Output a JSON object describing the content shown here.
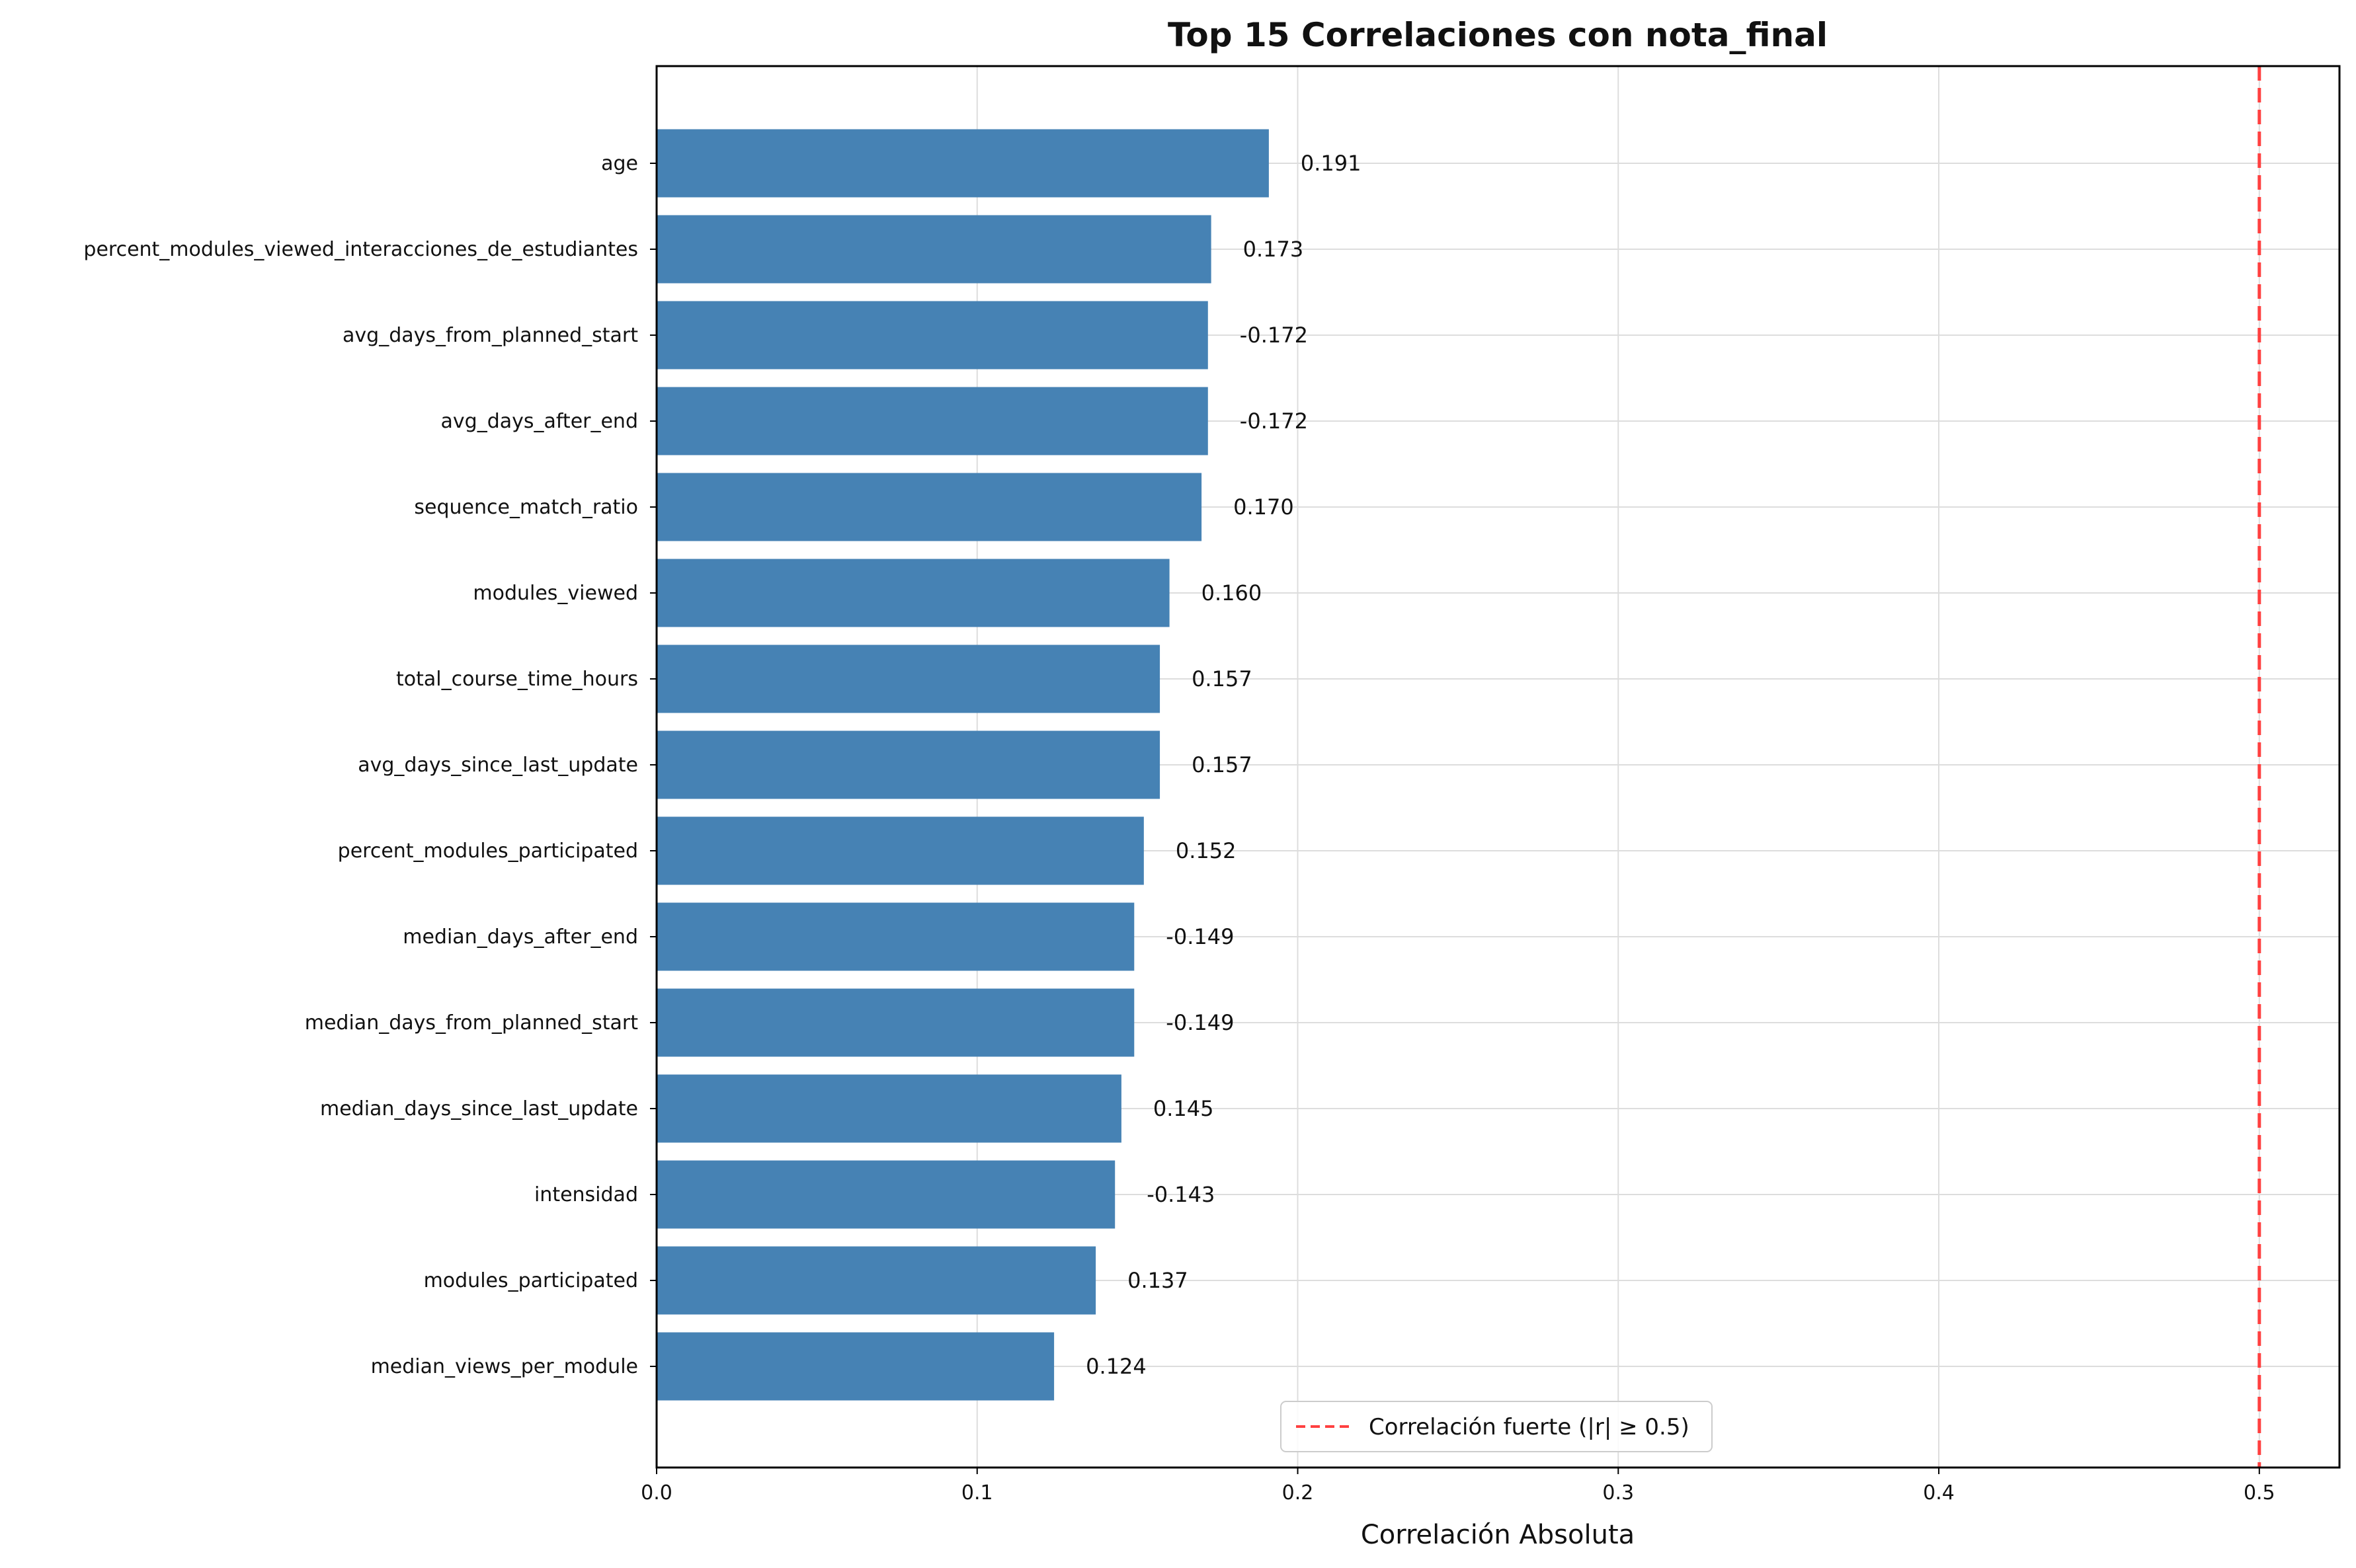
{
  "chart_data": {
    "type": "bar",
    "orientation": "horizontal",
    "title": "Top 15 Correlaciones con nota_final",
    "xlabel": "Correlación Absoluta",
    "ylabel": "",
    "xlim": [
      0,
      0.525
    ],
    "xticks": [
      "0.0",
      "0.1",
      "0.2",
      "0.3",
      "0.4",
      "0.5"
    ],
    "grid": true,
    "bar_color": "#4682b4",
    "categories": [
      "age",
      "percent_modules_viewed_interacciones_de_estudiantes",
      "avg_days_from_planned_start",
      "avg_days_after_end",
      "sequence_match_ratio",
      "modules_viewed",
      "total_course_time_hours",
      "avg_days_since_last_update",
      "percent_modules_participated",
      "median_days_after_end",
      "median_days_from_planned_start",
      "median_days_since_last_update",
      "intensidad",
      "modules_participated",
      "median_views_per_module"
    ],
    "values": [
      0.191,
      0.173,
      0.172,
      0.172,
      0.17,
      0.16,
      0.157,
      0.157,
      0.152,
      0.149,
      0.149,
      0.145,
      0.143,
      0.137,
      0.124
    ],
    "value_labels": [
      "0.191",
      "0.173",
      "-0.172",
      "-0.172",
      "0.170",
      "0.160",
      "0.157",
      "0.157",
      "0.152",
      "-0.149",
      "-0.149",
      "0.145",
      "-0.143",
      "0.137",
      "0.124"
    ],
    "reference_line": {
      "x": 0.5,
      "color": "#ff4040",
      "style": "dashed",
      "label": "Correlación fuerte (|r| ≥ 0.5)"
    },
    "legend_position": "lower-center"
  }
}
